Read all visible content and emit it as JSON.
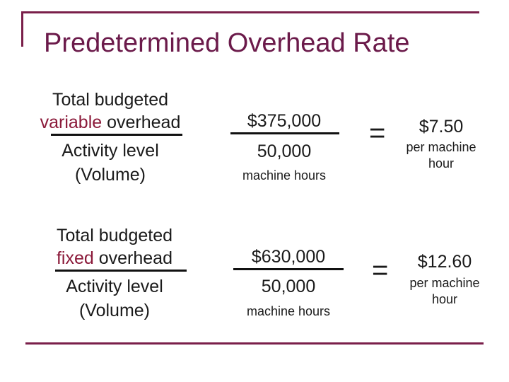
{
  "title": "Predetermined Overhead Rate",
  "row1": {
    "label_line1": "Total budgeted",
    "label_accent": "variable",
    "label_rest": " overhead",
    "denominator_line1": "Activity level",
    "denominator_line2": "(Volume)",
    "numerator_value": "$375,000",
    "denominator_value": "50,000",
    "denominator_unit": "machine hours",
    "equals": "=",
    "result_value": "$7.50",
    "result_unit_line1": "per machine",
    "result_unit_line2": "hour"
  },
  "row2": {
    "label_line1": "Total budgeted",
    "label_accent": "fixed",
    "label_rest": " overhead",
    "denominator_line1": "Activity level",
    "denominator_line2": "(Volume)",
    "numerator_value": "$630,000",
    "denominator_value": "50,000",
    "denominator_unit": "machine hours",
    "equals": "=",
    "result_value": "$12.60",
    "result_unit_line1": "per machine",
    "result_unit_line2": "hour"
  }
}
